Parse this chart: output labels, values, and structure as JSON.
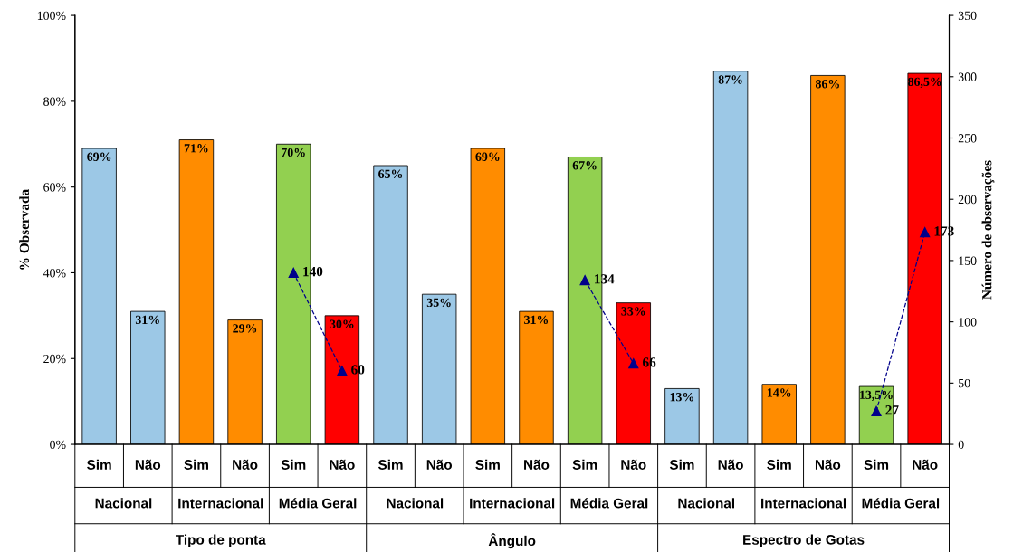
{
  "chart_data": {
    "type": "bar",
    "ylabel": "% Observada",
    "y2label": "Número de observações",
    "categories": [
      "Sim",
      "Não",
      "Sim",
      "Não",
      "Sim",
      "Não",
      "Sim",
      "Não",
      "Sim",
      "Não",
      "Sim",
      "Não",
      "Sim",
      "Não",
      "Sim",
      "Não",
      "Sim",
      "Não"
    ],
    "annotations": [
      "Nacional",
      "Internacional",
      "Média Geral",
      "Nacional",
      "Internacional",
      "Média Geral",
      "Nacional",
      "Internacional",
      "Média Geral",
      "Tipo de ponta",
      "Ângulo",
      "Espectro de Gotas"
    ],
    "series": [
      {
        "colors": [
          "#9cc8e6",
          "#9cc8e6",
          "#ff8c00",
          "#ff8c00",
          "#92d050",
          "#ff0000",
          "#9cc8e6",
          "#9cc8e6",
          "#ff8c00",
          "#ff8c00",
          "#92d050",
          "#ff0000",
          "#9cc8e6",
          "#9cc8e6",
          "#ff8c00",
          "#ff8c00",
          "#92d050",
          "#ff0000"
        ],
        "values": [
          69,
          31,
          71,
          29,
          70,
          30,
          65,
          35,
          69,
          31,
          67,
          33,
          13,
          87,
          14,
          86,
          13.5,
          86.5
        ],
        "value_labels": [
          "69%",
          "31%",
          "71%",
          "29%",
          "70%",
          "30%",
          "65%",
          "35%",
          "69%",
          "31%",
          "67%",
          "33%",
          "13%",
          "87%",
          "14%",
          "86%",
          "13,5%",
          "86,5%"
        ]
      },
      {
        "type": "line",
        "axis": "y2",
        "color": "#00008b",
        "marker": "triangle",
        "line_style": "dashed",
        "values": [
          null,
          null,
          null,
          null,
          140,
          60,
          null,
          null,
          null,
          null,
          134,
          66,
          null,
          null,
          null,
          null,
          27,
          173
        ],
        "value_labels": [
          null,
          null,
          null,
          null,
          "140",
          "60",
          null,
          null,
          null,
          null,
          "134",
          "66",
          null,
          null,
          null,
          null,
          "27",
          "173"
        ]
      }
    ],
    "ylim": [
      0,
      100
    ],
    "yticks": [
      {
        "value": 0,
        "label": "0%"
      },
      {
        "value": 20,
        "label": "20%"
      },
      {
        "value": 40,
        "label": "40%"
      },
      {
        "value": 60,
        "label": "60%"
      },
      {
        "value": 80,
        "label": "80%"
      },
      {
        "value": 100,
        "label": "100%"
      }
    ],
    "y2lim": [
      0,
      350
    ],
    "y2ticks": [
      0,
      50,
      100,
      150,
      200,
      250,
      300,
      350
    ],
    "grid": false,
    "legend": false
  }
}
